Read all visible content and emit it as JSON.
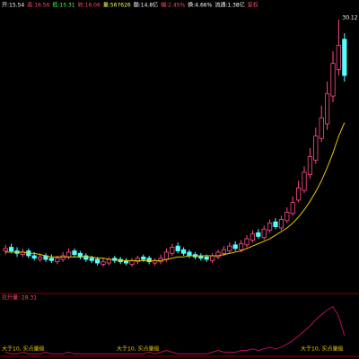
{
  "header": [
    {
      "text": "开:15.54",
      "color": "#ffffff"
    },
    {
      "text": "高:16.56",
      "color": "#ff4a6a"
    },
    {
      "text": "低:15.31",
      "color": "#54ff54"
    },
    {
      "text": "收:16.06",
      "color": "#ff4a6a"
    },
    {
      "text": "量:567626",
      "color": "#ffff55"
    },
    {
      "text": "额:14.8亿",
      "color": "#ffffff"
    },
    {
      "text": "幅:2.45%",
      "color": "#ff4a6a"
    },
    {
      "text": "换:4.66%",
      "color": "#ffffff"
    },
    {
      "text": "流通:1.38亿",
      "color": "#ffffff"
    },
    {
      "text": "复权",
      "color": "#ff4a6a"
    }
  ],
  "chart_data": {
    "type": "candlestick",
    "up_color": "#ff4a8d",
    "down_color": "#54ffff",
    "ylim": [
      8,
      31
    ],
    "open": [
      11.0,
      11.3,
      11.0,
      10.7,
      11.0,
      10.6,
      10.3,
      10.6,
      10.4,
      10.1,
      10.3,
      10.5,
      11.0,
      10.8,
      10.6,
      10.4,
      10.3,
      9.9,
      10.0,
      10.4,
      10.3,
      10.2,
      9.9,
      10.1,
      10.5,
      10.4,
      10.0,
      10.1,
      10.3,
      10.8,
      11.4,
      11.1,
      10.9,
      10.7,
      10.6,
      10.5,
      10.2,
      10.5,
      10.8,
      11.0,
      11.5,
      11.1,
      11.5,
      11.9,
      12.5,
      12.1,
      12.7,
      13.4,
      12.9,
      13.5,
      14.1,
      15.2,
      16.0,
      17.3,
      18.5,
      20.3,
      21.5,
      23.8,
      26.0,
      28.5
    ],
    "high": [
      11.5,
      11.6,
      11.3,
      11.2,
      11.2,
      10.9,
      10.8,
      10.8,
      10.7,
      10.6,
      10.9,
      11.2,
      11.2,
      11.0,
      10.8,
      10.6,
      10.5,
      10.4,
      10.5,
      10.6,
      10.5,
      10.4,
      10.4,
      10.6,
      10.7,
      10.6,
      10.4,
      10.7,
      11.2,
      11.6,
      11.7,
      11.3,
      11.1,
      10.9,
      10.8,
      10.7,
      10.8,
      11.1,
      11.4,
      11.7,
      11.8,
      11.9,
      12.3,
      12.7,
      12.8,
      13.1,
      13.6,
      13.7,
      13.9,
      14.6,
      15.5,
      16.8,
      18.0,
      19.5,
      21.2,
      23.0,
      25.0,
      27.5,
      30.12,
      29.0
    ],
    "low": [
      10.7,
      10.8,
      10.5,
      10.5,
      10.4,
      10.2,
      10.1,
      10.1,
      10.0,
      9.9,
      10.1,
      10.3,
      10.5,
      10.3,
      10.1,
      10.0,
      9.8,
      9.7,
      9.8,
      10.0,
      9.9,
      9.8,
      9.7,
      9.9,
      10.1,
      9.9,
      9.8,
      9.9,
      10.1,
      10.6,
      10.8,
      10.6,
      10.4,
      10.3,
      10.2,
      10.1,
      10.0,
      10.3,
      10.6,
      10.8,
      11.0,
      10.9,
      11.3,
      11.7,
      12.0,
      11.9,
      12.5,
      12.8,
      12.7,
      13.3,
      13.9,
      15.0,
      15.8,
      17.0,
      18.2,
      20.0,
      21.0,
      23.3,
      25.5,
      25.0
    ],
    "close": [
      11.2,
      11.0,
      10.8,
      10.9,
      10.6,
      10.4,
      10.5,
      10.3,
      10.2,
      10.4,
      10.6,
      10.9,
      10.7,
      10.5,
      10.3,
      10.2,
      10.0,
      10.1,
      10.3,
      10.2,
      10.1,
      10.0,
      10.2,
      10.4,
      10.3,
      10.1,
      10.2,
      10.4,
      10.9,
      11.3,
      11.0,
      10.8,
      10.6,
      10.5,
      10.4,
      10.3,
      10.6,
      10.9,
      11.1,
      11.4,
      11.2,
      11.6,
      12.0,
      12.4,
      12.2,
      12.8,
      13.3,
      13.0,
      13.6,
      14.2,
      15.0,
      16.2,
      17.5,
      18.8,
      20.5,
      22.0,
      24.0,
      26.5,
      28.0,
      25.5
    ],
    "series": [
      {
        "color": "#e8c800",
        "values": [
          10.9,
          10.9,
          10.9,
          10.9,
          10.8,
          10.8,
          10.7,
          10.6,
          10.5,
          10.5,
          10.5,
          10.5,
          10.5,
          10.5,
          10.5,
          10.5,
          10.4,
          10.4,
          10.3,
          10.3,
          10.2,
          10.2,
          10.2,
          10.2,
          10.2,
          10.2,
          10.2,
          10.2,
          10.3,
          10.4,
          10.5,
          10.5,
          10.6,
          10.6,
          10.6,
          10.6,
          10.6,
          10.6,
          10.7,
          10.8,
          10.9,
          11.0,
          11.2,
          11.4,
          11.6,
          11.8,
          12.0,
          12.3,
          12.6,
          12.9,
          13.3,
          13.8,
          14.4,
          15.1,
          15.9,
          16.8,
          17.9,
          19.1,
          20.5,
          21.6
        ]
      }
    ],
    "indicator": {
      "label": "拉升量: 28.31",
      "color": "#b0105a",
      "ylim": [
        0,
        32
      ],
      "values": [
        2,
        1,
        1,
        2,
        1,
        1,
        1,
        2,
        1,
        1,
        1,
        2,
        1,
        1,
        1,
        1,
        1,
        1,
        1,
        1,
        1,
        1,
        1,
        1,
        1,
        2,
        1,
        2,
        3,
        2,
        1,
        1,
        1,
        1,
        1,
        1,
        2,
        3,
        2,
        2,
        2,
        3,
        3,
        4,
        3,
        4,
        5,
        4,
        5,
        7,
        9,
        12,
        15,
        18,
        22,
        25,
        28,
        30,
        24,
        12
      ]
    },
    "annotations": [
      "大于10, 买点量级",
      "大于10, 买点量级",
      "大于10, 买点量级"
    ]
  }
}
